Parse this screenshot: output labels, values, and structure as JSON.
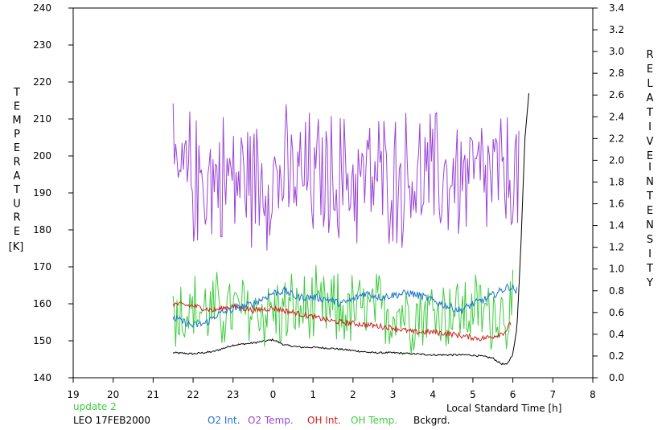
{
  "chart_data": {
    "type": "line",
    "x_axis": {
      "label": "Local Standard Time [h]",
      "tick_labels": [
        "19",
        "20",
        "21",
        "22",
        "23",
        "0",
        "1",
        "2",
        "3",
        "4",
        "5",
        "6",
        "7",
        "8"
      ],
      "range": [
        19,
        32
      ]
    },
    "y_left": {
      "title_letters": [
        "T",
        "E",
        "M",
        "P",
        "E",
        "R",
        "A",
        "T",
        "U",
        "R",
        "E"
      ],
      "unit": "[K]",
      "range": [
        140,
        240
      ],
      "tick_labels": [
        "140",
        "150",
        "160",
        "170",
        "180",
        "190",
        "200",
        "210",
        "220",
        "230",
        "240"
      ]
    },
    "y_right": {
      "title_word1": [
        "R",
        "E",
        "L",
        "A",
        "T",
        "I",
        "V",
        "E"
      ],
      "title_word2": [
        "I",
        "N",
        "T",
        "E",
        "N",
        "S",
        "I",
        "T",
        "Y"
      ],
      "range": [
        0.0,
        3.4
      ],
      "tick_labels": [
        "0.0",
        "0.2",
        "0.4",
        "0.6",
        "0.8",
        "1.0",
        "1.2",
        "1.4",
        "1.6",
        "1.8",
        "2.0",
        "2.2",
        "2.4",
        "2.6",
        "2.8",
        "3.0",
        "3.2",
        "3.4"
      ]
    },
    "footer": {
      "update": "update 2",
      "station": "LEO 17FEB2000"
    },
    "colors": {
      "o2_int": "#1e73d2",
      "o2_temp": "#9a45d6",
      "oh_int": "#d21e1e",
      "oh_temp": "#3ecc3e",
      "background": "#000000"
    },
    "series": [
      {
        "name": "O2 Int.",
        "axis": "right",
        "style": "smooth",
        "x_range": [
          21.5,
          30.1
        ],
        "points": [
          [
            21.5,
            0.55
          ],
          [
            22.0,
            0.48
          ],
          [
            22.3,
            0.5
          ],
          [
            22.6,
            0.58
          ],
          [
            23.0,
            0.63
          ],
          [
            23.5,
            0.68
          ],
          [
            24.0,
            0.78
          ],
          [
            24.3,
            0.8
          ],
          [
            24.6,
            0.74
          ],
          [
            25.0,
            0.74
          ],
          [
            25.4,
            0.72
          ],
          [
            25.7,
            0.68
          ],
          [
            26.0,
            0.72
          ],
          [
            26.3,
            0.78
          ],
          [
            26.7,
            0.74
          ],
          [
            27.0,
            0.76
          ],
          [
            27.4,
            0.78
          ],
          [
            27.8,
            0.74
          ],
          [
            28.2,
            0.68
          ],
          [
            28.5,
            0.64
          ],
          [
            28.7,
            0.62
          ],
          [
            29.0,
            0.68
          ],
          [
            29.3,
            0.72
          ],
          [
            29.6,
            0.78
          ],
          [
            29.9,
            0.84
          ],
          [
            30.1,
            0.8
          ]
        ],
        "noise": 0.035
      },
      {
        "name": "O2 Temp.",
        "axis": "left",
        "style": "noisy",
        "x_range": [
          21.5,
          30.15
        ],
        "mean": 194,
        "amplitude": 22
      },
      {
        "name": "OH Int.",
        "axis": "right",
        "style": "smooth",
        "x_range": [
          21.5,
          29.95
        ],
        "points": [
          [
            21.5,
            0.68
          ],
          [
            22.0,
            0.66
          ],
          [
            22.5,
            0.62
          ],
          [
            23.0,
            0.66
          ],
          [
            23.5,
            0.62
          ],
          [
            24.0,
            0.64
          ],
          [
            24.5,
            0.6
          ],
          [
            25.0,
            0.56
          ],
          [
            25.5,
            0.52
          ],
          [
            26.0,
            0.5
          ],
          [
            26.5,
            0.48
          ],
          [
            27.0,
            0.46
          ],
          [
            27.5,
            0.42
          ],
          [
            28.0,
            0.42
          ],
          [
            28.5,
            0.4
          ],
          [
            28.8,
            0.38
          ],
          [
            29.2,
            0.36
          ],
          [
            29.5,
            0.38
          ],
          [
            29.8,
            0.42
          ],
          [
            29.95,
            0.5
          ]
        ],
        "noise": 0.025
      },
      {
        "name": "OH Temp.",
        "axis": "left",
        "style": "noisy",
        "x_range": [
          21.5,
          30.0
        ],
        "mean": 158,
        "amplitude": 13
      },
      {
        "name": "Bckgrd.",
        "axis": "right",
        "style": "smooth",
        "x_range": [
          21.5,
          30.4
        ],
        "points": [
          [
            21.5,
            0.23
          ],
          [
            22.0,
            0.22
          ],
          [
            22.5,
            0.24
          ],
          [
            23.0,
            0.3
          ],
          [
            23.5,
            0.32
          ],
          [
            24.0,
            0.35
          ],
          [
            24.3,
            0.3
          ],
          [
            24.7,
            0.28
          ],
          [
            25.0,
            0.28
          ],
          [
            25.5,
            0.27
          ],
          [
            26.0,
            0.25
          ],
          [
            26.5,
            0.23
          ],
          [
            27.0,
            0.23
          ],
          [
            27.5,
            0.22
          ],
          [
            28.0,
            0.21
          ],
          [
            28.5,
            0.21
          ],
          [
            28.9,
            0.21
          ],
          [
            29.2,
            0.2
          ],
          [
            29.5,
            0.18
          ],
          [
            29.7,
            0.13
          ],
          [
            29.85,
            0.12
          ],
          [
            30.0,
            0.22
          ],
          [
            30.1,
            0.45
          ],
          [
            30.2,
            1.2
          ],
          [
            30.3,
            2.2
          ],
          [
            30.4,
            2.62
          ]
        ],
        "noise": 0.008
      }
    ]
  }
}
